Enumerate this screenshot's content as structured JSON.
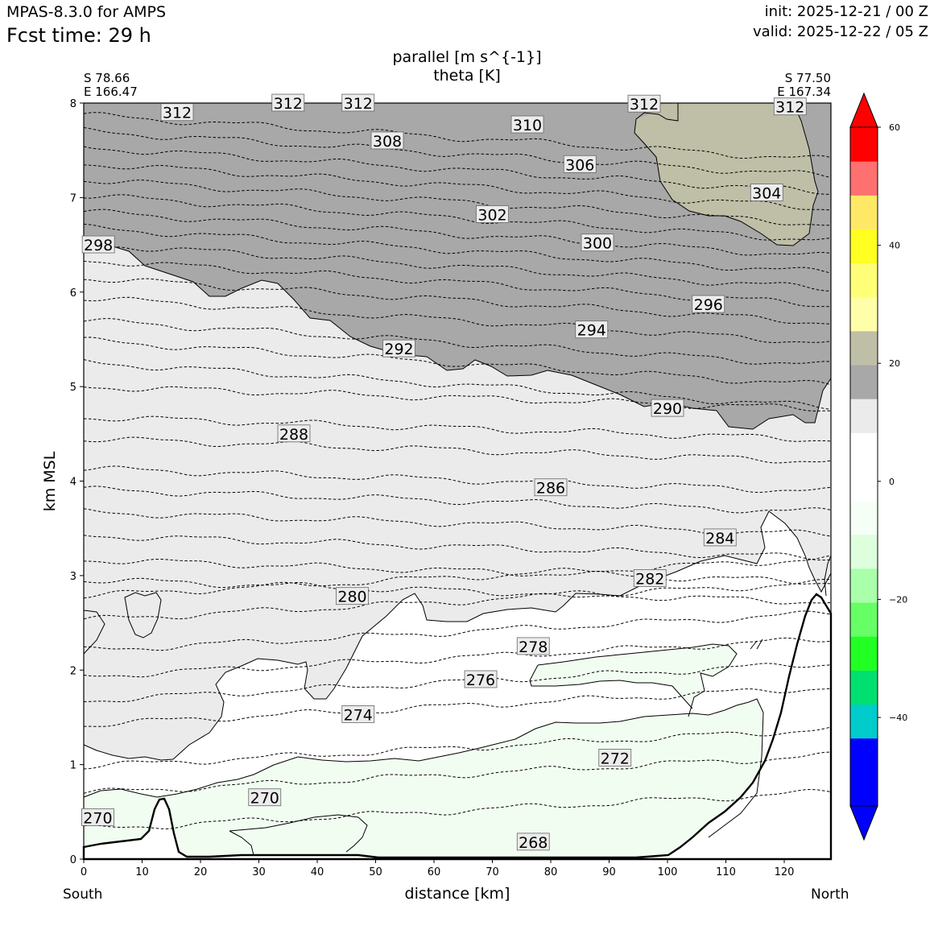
{
  "header": {
    "model": "MPAS-8.3.0 for AMPS",
    "fcst_time": "Fcst time:   29 h",
    "init": "init: 2025-12-21 / 00 Z",
    "valid": "valid: 2025-12-22 / 05 Z"
  },
  "chart_data": {
    "type": "contour",
    "title": "parallel [m s^{-1}]",
    "subtitle": "theta [K]",
    "xlabel": "distance [km]",
    "ylabel": "km MSL",
    "xlim": [
      0,
      128
    ],
    "ylim": [
      0,
      8
    ],
    "x_ticks": [
      0,
      10,
      20,
      30,
      40,
      50,
      60,
      70,
      80,
      90,
      100,
      110,
      120
    ],
    "y_ticks": [
      0,
      1,
      2,
      3,
      4,
      5,
      6,
      7,
      8
    ],
    "left_endpoint": {
      "lat": "S 78.66",
      "lon": "E 166.47",
      "side": "South"
    },
    "right_endpoint": {
      "lat": "S 77.50",
      "lon": "E 167.34",
      "side": "North"
    },
    "colorbar": {
      "tick_labels": [
        "60",
        "40",
        "20",
        "0",
        "−20",
        "−40"
      ],
      "tick_values": [
        60,
        40,
        20,
        0,
        -20,
        -40
      ],
      "range": [
        -55,
        60
      ],
      "colors": [
        "#0000ff",
        "#0000ff",
        "#00cccc",
        "#00e070",
        "#22ff22",
        "#66ff66",
        "#aaffaa",
        "#ddffdd",
        "#f5fff5",
        "#ffffff",
        "#ffffff",
        "#ebebeb",
        "#a8a8a8",
        "#bfbfa8",
        "#ffffaa",
        "#ffff77",
        "#ffff22",
        "#ffe866",
        "#ff7070",
        "#ff0000"
      ]
    },
    "theta_contours": [
      {
        "label": "312",
        "label_at": [
          16,
          7.9
        ]
      },
      {
        "label": "312",
        "label_at": [
          35,
          8.0
        ]
      },
      {
        "label": "312",
        "label_at": [
          47,
          8.0
        ]
      },
      {
        "label": "312",
        "label_at": [
          96,
          7.99
        ]
      },
      {
        "label": "312",
        "label_at": [
          121,
          7.96
        ]
      },
      {
        "label": "310",
        "label_at": [
          76,
          7.77
        ]
      },
      {
        "label": "308",
        "label_at": [
          52,
          7.6
        ]
      },
      {
        "label": "306",
        "label_at": [
          85,
          7.35
        ]
      },
      {
        "label": "304",
        "label_at": [
          117,
          7.05
        ]
      },
      {
        "label": "302",
        "label_at": [
          70,
          6.82
        ]
      },
      {
        "label": "300",
        "label_at": [
          88,
          6.52
        ]
      },
      {
        "label": "298",
        "label_at": [
          2.5,
          6.5
        ]
      },
      {
        "label": "296",
        "label_at": [
          107,
          5.87
        ]
      },
      {
        "label": "294",
        "label_at": [
          87,
          5.6
        ]
      },
      {
        "label": "292",
        "label_at": [
          54,
          5.4
        ]
      },
      {
        "label": "290",
        "label_at": [
          100,
          4.77
        ]
      },
      {
        "label": "288",
        "label_at": [
          36,
          4.5
        ]
      },
      {
        "label": "286",
        "label_at": [
          80,
          3.93
        ]
      },
      {
        "label": "284",
        "label_at": [
          109,
          3.4
        ]
      },
      {
        "label": "282",
        "label_at": [
          97,
          2.97
        ]
      },
      {
        "label": "280",
        "label_at": [
          46,
          2.78
        ]
      },
      {
        "label": "278",
        "label_at": [
          77,
          2.25
        ]
      },
      {
        "label": "276",
        "label_at": [
          68,
          1.9
        ]
      },
      {
        "label": "274",
        "label_at": [
          47,
          1.53
        ]
      },
      {
        "label": "272",
        "label_at": [
          91,
          1.07
        ]
      },
      {
        "label": "270",
        "label_at": [
          31,
          0.65
        ]
      },
      {
        "label": "270",
        "label_at": [
          2.4,
          0.44
        ]
      },
      {
        "label": "268",
        "label_at": [
          77,
          0.18
        ]
      }
    ]
  }
}
